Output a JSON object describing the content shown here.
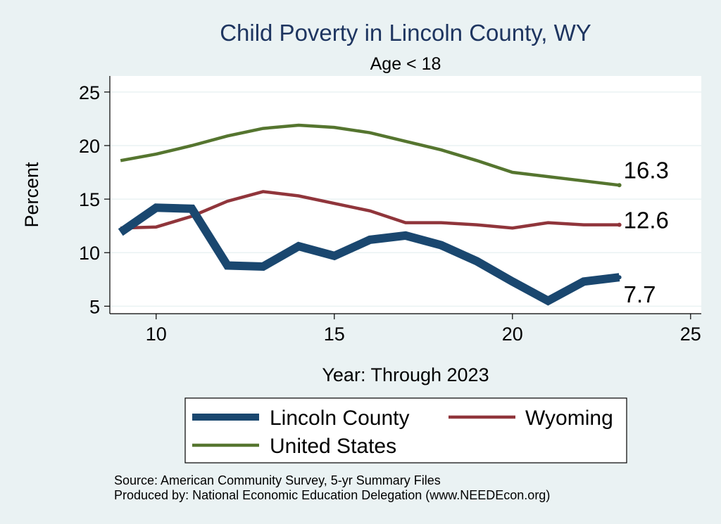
{
  "chart_data": {
    "type": "line",
    "title": "Child Poverty in Lincoln County, WY",
    "subtitle": "Age < 18",
    "xlabel": "Year: Through 2023",
    "ylabel": "Percent",
    "xlim": [
      8.7,
      25.3
    ],
    "ylim": [
      4.3,
      26.5
    ],
    "xticks": [
      10,
      15,
      20,
      25
    ],
    "yticks": [
      5,
      10,
      15,
      20,
      25
    ],
    "grid": true,
    "legend_position": "bottom",
    "x": [
      9,
      10,
      11,
      12,
      13,
      14,
      15,
      16,
      17,
      18,
      19,
      20,
      21,
      22,
      23
    ],
    "series": [
      {
        "name": "Lincoln County",
        "color": "#1a476f",
        "values": [
          11.9,
          14.2,
          14.1,
          8.8,
          8.7,
          10.6,
          9.7,
          11.2,
          11.6,
          10.7,
          9.2,
          7.3,
          5.5,
          7.3,
          7.7
        ],
        "end_label": "7.7"
      },
      {
        "name": "Wyoming",
        "color": "#90353b",
        "values": [
          12.3,
          12.4,
          13.4,
          14.8,
          15.7,
          15.3,
          14.6,
          13.9,
          12.8,
          12.8,
          12.6,
          12.3,
          12.8,
          12.6,
          12.6
        ],
        "end_label": "12.6"
      },
      {
        "name": "United States",
        "color": "#55752f",
        "values": [
          18.6,
          19.2,
          20.0,
          20.9,
          21.6,
          21.9,
          21.7,
          21.2,
          20.4,
          19.6,
          18.6,
          17.5,
          17.1,
          16.7,
          16.3
        ],
        "end_label": "16.3"
      }
    ]
  },
  "notes": {
    "source": "Source: American Community Survey, 5-yr Summary Files",
    "produced_by": "Produced by: National Economic Education Delegation (www.NEEDEcon.org)"
  }
}
